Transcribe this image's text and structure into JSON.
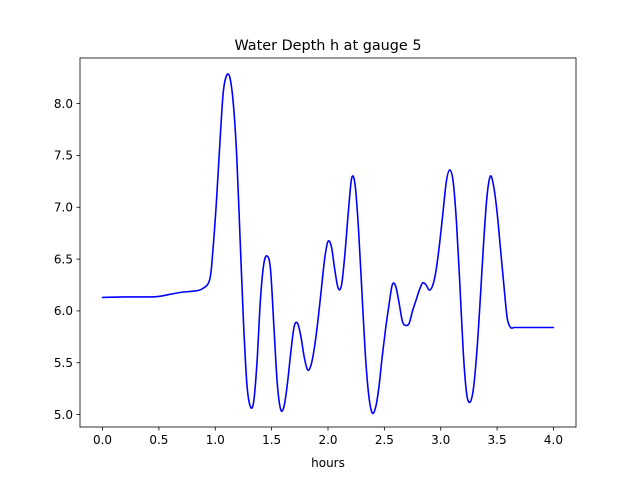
{
  "chart_data": {
    "type": "line",
    "title": "Water Depth h at gauge 5",
    "xlabel": "hours",
    "ylabel": "",
    "xlim": [
      -0.2,
      4.2
    ],
    "ylim": [
      4.88,
      8.44
    ],
    "x_ticks": [
      0.0,
      0.5,
      1.0,
      1.5,
      2.0,
      2.5,
      3.0,
      3.5,
      4.0
    ],
    "x_tick_labels": [
      "0.0",
      "0.5",
      "1.0",
      "1.5",
      "2.0",
      "2.5",
      "3.0",
      "3.5",
      "4.0"
    ],
    "y_ticks": [
      5.0,
      5.5,
      6.0,
      6.5,
      7.0,
      7.5,
      8.0
    ],
    "y_tick_labels": [
      "5.0",
      "5.5",
      "6.0",
      "6.5",
      "7.0",
      "7.5",
      "8.0"
    ],
    "grid": false,
    "legend": "none",
    "series": [
      {
        "color": "#0000ff",
        "x": [
          0.0,
          0.2,
          0.4,
          0.5,
          0.6,
          0.7,
          0.8,
          0.88,
          0.95,
          0.98,
          1.01,
          1.04,
          1.07,
          1.1,
          1.13,
          1.16,
          1.19,
          1.22,
          1.25,
          1.28,
          1.31,
          1.34,
          1.37,
          1.4,
          1.43,
          1.46,
          1.49,
          1.52,
          1.55,
          1.58,
          1.61,
          1.64,
          1.67,
          1.7,
          1.73,
          1.76,
          1.79,
          1.82,
          1.85,
          1.88,
          1.91,
          1.94,
          1.97,
          2.0,
          2.03,
          2.06,
          2.09,
          2.12,
          2.15,
          2.18,
          2.21,
          2.24,
          2.27,
          2.3,
          2.33,
          2.36,
          2.39,
          2.42,
          2.45,
          2.48,
          2.51,
          2.54,
          2.57,
          2.6,
          2.63,
          2.66,
          2.69,
          2.72,
          2.75,
          2.78,
          2.81,
          2.84,
          2.87,
          2.9,
          2.93,
          2.96,
          2.99,
          3.02,
          3.05,
          3.08,
          3.11,
          3.14,
          3.17,
          3.2,
          3.23,
          3.26,
          3.29,
          3.32,
          3.35,
          3.38,
          3.41,
          3.44,
          3.47,
          3.5,
          3.53,
          3.56,
          3.59,
          3.62,
          3.65,
          3.68,
          3.71,
          3.74,
          3.77,
          3.8,
          3.83,
          3.86,
          3.89,
          3.92,
          3.95,
          3.98,
          4.0
        ],
        "y": [
          6.13,
          6.135,
          6.135,
          6.14,
          6.16,
          6.18,
          6.19,
          6.21,
          6.3,
          6.6,
          7.05,
          7.6,
          8.1,
          8.27,
          8.25,
          8.0,
          7.5,
          6.7,
          5.9,
          5.3,
          5.08,
          5.12,
          5.5,
          6.1,
          6.45,
          6.53,
          6.4,
          5.85,
          5.3,
          5.05,
          5.08,
          5.3,
          5.6,
          5.85,
          5.88,
          5.75,
          5.55,
          5.43,
          5.48,
          5.65,
          5.9,
          6.2,
          6.5,
          6.67,
          6.62,
          6.4,
          6.22,
          6.25,
          6.55,
          6.95,
          7.28,
          7.22,
          6.8,
          6.2,
          5.6,
          5.2,
          5.02,
          5.06,
          5.25,
          5.55,
          5.82,
          6.05,
          6.25,
          6.24,
          6.08,
          5.9,
          5.86,
          5.88,
          6.0,
          6.1,
          6.2,
          6.27,
          6.25,
          6.2,
          6.25,
          6.4,
          6.65,
          6.95,
          7.25,
          7.36,
          7.25,
          6.85,
          6.25,
          5.6,
          5.2,
          5.12,
          5.25,
          5.6,
          6.1,
          6.65,
          7.1,
          7.3,
          7.2,
          6.95,
          6.6,
          6.25,
          5.93,
          5.84,
          5.84,
          5.84,
          5.84,
          5.84,
          5.84,
          5.84,
          5.84,
          5.84,
          5.84,
          5.84,
          5.84,
          5.84,
          5.84
        ]
      }
    ]
  }
}
